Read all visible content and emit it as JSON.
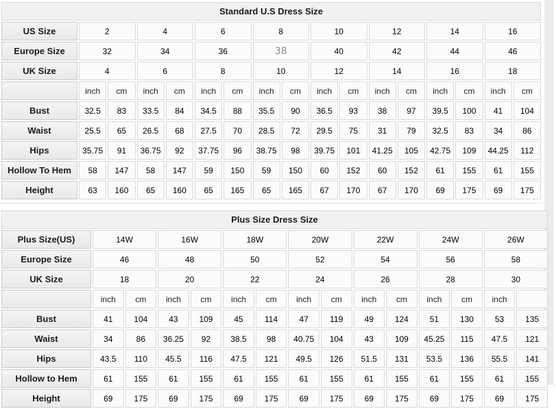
{
  "colors": {
    "muted_value": "#8a8a8a",
    "header_bg": "#f1f1f1",
    "label_bg": "#efefef",
    "cell_bg": "#fbfbfb",
    "border": "#d8d8d8"
  },
  "chart_data": [
    {
      "type": "table",
      "title": "Standard U.S Dress Size",
      "header_rows": [
        {
          "label": "US Size",
          "values": [
            "2",
            "4",
            "6",
            "8",
            "10",
            "12",
            "14",
            "16"
          ]
        },
        {
          "label": "Europe Size",
          "values": [
            "32",
            "34",
            "36",
            "38",
            "40",
            "42",
            "44",
            "46"
          ],
          "muted_index": 3
        },
        {
          "label": "UK Size",
          "values": [
            "4",
            "6",
            "8",
            "10",
            "12",
            "14",
            "16",
            "18"
          ]
        }
      ],
      "unit_row": {
        "label": "",
        "cells": [
          "inch",
          "cm",
          "inch",
          "cm",
          "inch",
          "cm",
          "inch",
          "cm",
          "inch",
          "cm",
          "inch",
          "cm",
          "inch",
          "cm",
          "inch",
          "cm"
        ]
      },
      "rows": [
        {
          "label": "Bust",
          "values": [
            "32.5",
            "83",
            "33.5",
            "84",
            "34.5",
            "88",
            "35.5",
            "90",
            "36.5",
            "93",
            "38",
            "97",
            "39.5",
            "100",
            "41",
            "104"
          ]
        },
        {
          "label": "Waist",
          "values": [
            "25.5",
            "65",
            "26.5",
            "68",
            "27.5",
            "70",
            "28.5",
            "72",
            "29.5",
            "75",
            "31",
            "79",
            "32.5",
            "83",
            "34",
            "86"
          ]
        },
        {
          "label": "Hips",
          "values": [
            "35.75",
            "91",
            "36.75",
            "92",
            "37.75",
            "96",
            "38.75",
            "98",
            "39.75",
            "101",
            "41.25",
            "105",
            "42.75",
            "109",
            "44.25",
            "112"
          ]
        },
        {
          "label": "Hollow To Hem",
          "values": [
            "58",
            "147",
            "58",
            "147",
            "59",
            "150",
            "59",
            "150",
            "60",
            "152",
            "60",
            "152",
            "61",
            "155",
            "61",
            "155"
          ]
        },
        {
          "label": "Height",
          "values": [
            "63",
            "160",
            "65",
            "160",
            "65",
            "165",
            "65",
            "165",
            "67",
            "170",
            "67",
            "170",
            "69",
            "175",
            "69",
            "175"
          ]
        }
      ]
    },
    {
      "type": "table",
      "title": "Plus Size Dress Size",
      "header_rows": [
        {
          "label": "Plus Size(US)",
          "values": [
            "14W",
            "16W",
            "18W",
            "20W",
            "22W",
            "24W",
            "26W"
          ]
        },
        {
          "label": "Europe Size",
          "values": [
            "46",
            "48",
            "50",
            "52",
            "54",
            "56",
            "58"
          ]
        },
        {
          "label": "UK Size",
          "values": [
            "18",
            "20",
            "22",
            "24",
            "26",
            "28",
            "30"
          ]
        }
      ],
      "unit_row": {
        "label": "",
        "cells": [
          "inch",
          "cm",
          "inch",
          "cm",
          "inch",
          "cm",
          "inch",
          "cm",
          "inch",
          "cm",
          "inch",
          "cm",
          "inch",
          ""
        ]
      },
      "rows": [
        {
          "label": "Bust",
          "values": [
            "41",
            "104",
            "43",
            "109",
            "45",
            "114",
            "47",
            "119",
            "49",
            "124",
            "51",
            "130",
            "53",
            "135"
          ]
        },
        {
          "label": "Waist",
          "values": [
            "34",
            "86",
            "36.25",
            "92",
            "38.5",
            "98",
            "40.75",
            "104",
            "43",
            "109",
            "45.25",
            "115",
            "47.5",
            "121"
          ]
        },
        {
          "label": "Hips",
          "values": [
            "43.5",
            "110",
            "45.5",
            "116",
            "47.5",
            "121",
            "49.5",
            "126",
            "51.5",
            "131",
            "53.5",
            "136",
            "55.5",
            "141"
          ]
        },
        {
          "label": "Hollow to Hem",
          "values": [
            "61",
            "155",
            "61",
            "155",
            "61",
            "155",
            "61",
            "155",
            "61",
            "155",
            "61",
            "155",
            "61",
            "155"
          ]
        },
        {
          "label": "Height",
          "values": [
            "69",
            "175",
            "69",
            "175",
            "69",
            "175",
            "69",
            "175",
            "69",
            "175",
            "69",
            "175",
            "69",
            "175"
          ]
        }
      ]
    }
  ]
}
